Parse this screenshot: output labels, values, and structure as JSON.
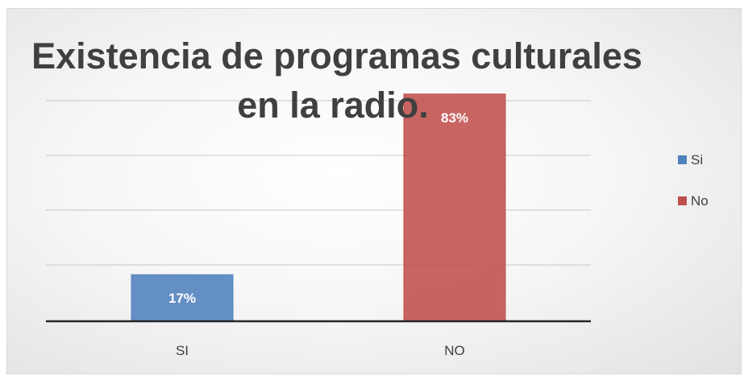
{
  "chart_data": {
    "type": "bar",
    "title_lines": [
      "Existencia de programas culturales",
      "en la radio."
    ],
    "categories": [
      "SI",
      "NO"
    ],
    "values": [
      17,
      83
    ],
    "value_labels": [
      "17%",
      "83%"
    ],
    "colors": [
      "#4f81bd",
      "#c0504d"
    ],
    "ylim": [
      0,
      85
    ],
    "grid": true,
    "legend": {
      "placement": "right",
      "entries": [
        {
          "label": "Si",
          "color": "#4f81bd"
        },
        {
          "label": "No",
          "color": "#c0504d"
        }
      ]
    }
  }
}
